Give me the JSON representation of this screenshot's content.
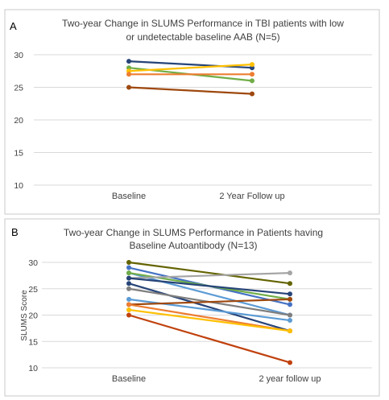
{
  "chart_data": [
    {
      "panel_label": "A",
      "type": "line",
      "title_lines": [
        "Two-year Change in SLUMS Performance in TBI patients with low",
        "or undetectable baseline AAB (N=5)"
      ],
      "categories": [
        "Baseline",
        "2 Year Follow up"
      ],
      "ylabel": "",
      "ylim": [
        10,
        30
      ],
      "yticks": [
        "10",
        "15",
        "20",
        "25",
        "30"
      ],
      "grid": true,
      "series": [
        {
          "values": [
            29,
            28
          ],
          "color": "#264478"
        },
        {
          "values": [
            28,
            26
          ],
          "color": "#70ad47"
        },
        {
          "values": [
            27.5,
            28.5
          ],
          "color": "#ffc000"
        },
        {
          "values": [
            27,
            27
          ],
          "color": "#ed7d31"
        },
        {
          "values": [
            25,
            24
          ],
          "color": "#9e480e"
        }
      ]
    },
    {
      "panel_label": "B",
      "type": "line",
      "title_lines": [
        "Two-year Change in SLUMS Performance in Patients having",
        "Baseline Autoantibody  (N=13)"
      ],
      "categories": [
        "Baseline",
        "2 year follow up"
      ],
      "ylabel": "SLUMS Score",
      "ylim": [
        10,
        30
      ],
      "yticks": [
        "10",
        "15",
        "20",
        "25",
        "30"
      ],
      "grid": true,
      "series": [
        {
          "values": [
            30,
            26
          ],
          "color": "#636300"
        },
        {
          "values": [
            29,
            22
          ],
          "color": "#4472c4"
        },
        {
          "values": [
            28,
            20
          ],
          "color": "#5b9bd5"
        },
        {
          "values": [
            28,
            23
          ],
          "color": "#70ad47"
        },
        {
          "values": [
            27,
            28
          ],
          "color": "#a5a5a5"
        },
        {
          "values": [
            27,
            24
          ],
          "color": "#264478"
        },
        {
          "values": [
            26,
            17
          ],
          "color": "#264478"
        },
        {
          "values": [
            25,
            20
          ],
          "color": "#7f7f7f"
        },
        {
          "values": [
            23,
            19
          ],
          "color": "#5b9bd5"
        },
        {
          "values": [
            22,
            23
          ],
          "color": "#9e480e"
        },
        {
          "values": [
            22,
            17
          ],
          "color": "#ed7d31"
        },
        {
          "values": [
            21,
            17
          ],
          "color": "#ffc000"
        },
        {
          "values": [
            20,
            11
          ],
          "color": "#c0410c"
        }
      ]
    }
  ]
}
